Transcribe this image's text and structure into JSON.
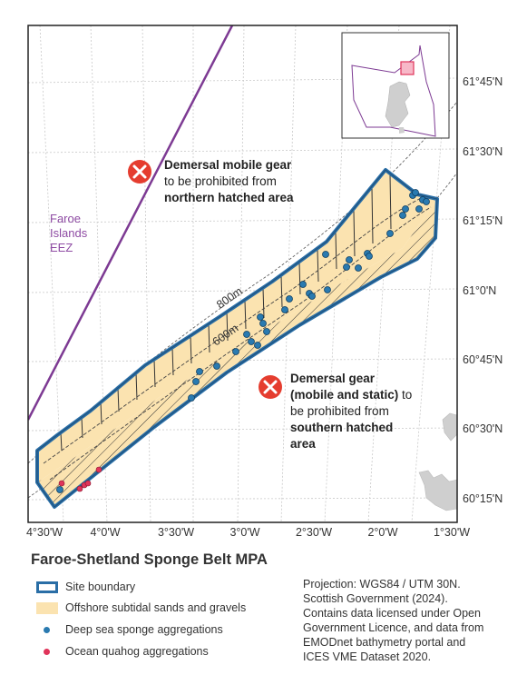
{
  "title": "Faroe-Shetland Sponge Belt MPA",
  "lat_labels": [
    "61°45'N",
    "61°30'N",
    "61°15'N",
    "61°0'N",
    "60°45'N",
    "60°30'N",
    "60°15'N"
  ],
  "lon_labels": [
    "4°30'W",
    "4°0'W",
    "3°30'W",
    "3°0'W",
    "2°30'W",
    "2°0'W",
    "1°30'W"
  ],
  "contours": [
    "800m",
    "600m"
  ],
  "eez_label": [
    "Faroe",
    "Islands",
    "EEZ"
  ],
  "annotations": {
    "north": {
      "line1": "Demersal mobile gear",
      "line2": "to be prohibited from",
      "line3": "northern hatched area"
    },
    "south": {
      "line1": "Demersal gear",
      "line2a": "(mobile and static)",
      "line2b": " to",
      "line3": "be prohibited from",
      "line4": "southern hatched",
      "line5": "area"
    }
  },
  "legend": [
    {
      "label": "Site boundary",
      "kind": "outline",
      "color": "#2a6ea6"
    },
    {
      "label": "Offshore subtidal sands and gravels",
      "kind": "fill",
      "color": "#fbe3b0"
    },
    {
      "label": "Deep sea sponge aggregations",
      "kind": "dot",
      "color": "#2a7ab0"
    },
    {
      "label": "Ocean quahog aggregations",
      "kind": "dot",
      "color": "#e0345a"
    }
  ],
  "source_lines": [
    "Projection: WGS84 / UTM 30N.",
    "Scottish Government (2024).",
    "Contains data licensed under Open",
    "Government Licence, and data from",
    "EMODnet bathymetry portal and",
    "ICES VME Dataset 2020."
  ],
  "colors": {
    "boundary": "#2a6ea6",
    "sand_fill": "#fbe3b0",
    "eez": "#7d3a93",
    "sponge": "#2a7ab0",
    "quahog": "#e0345a",
    "prohibit": "#e53d2f"
  }
}
